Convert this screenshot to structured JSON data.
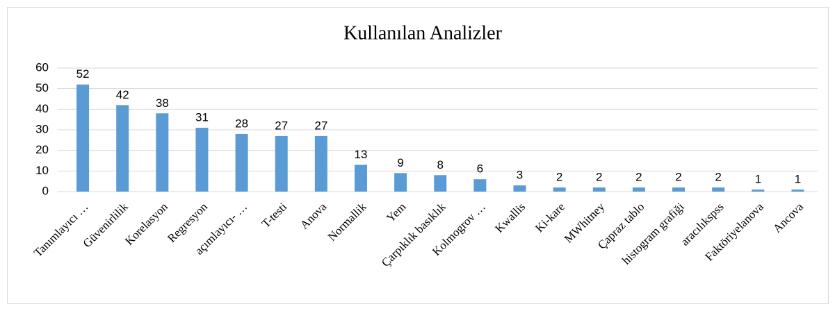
{
  "chart_data": {
    "type": "bar",
    "title": "Kullanılan Analizler",
    "categories": [
      "Tanımlayıcı …",
      "Güvenirlilik",
      "Korelasyon",
      "Regresyon",
      "açımlayıcı- …",
      "T-testi",
      "Anova",
      "Normallik",
      "Yem",
      "Çarpıklık basıklık",
      "Kolmogrov …",
      "Kwallis",
      "Ki-kare",
      "MWhitney",
      "Çapraz tablo",
      "histogram grafiği",
      "aracılıkspss",
      "Faktöriyelanova",
      "Ancova"
    ],
    "values": [
      52,
      42,
      38,
      31,
      28,
      27,
      27,
      13,
      9,
      8,
      6,
      3,
      2,
      2,
      2,
      2,
      2,
      1,
      1
    ],
    "color": "#5b9bd5",
    "ylim": [
      0,
      60
    ],
    "yticks": [
      0,
      10,
      20,
      30,
      40,
      50,
      60
    ],
    "grid": true
  }
}
